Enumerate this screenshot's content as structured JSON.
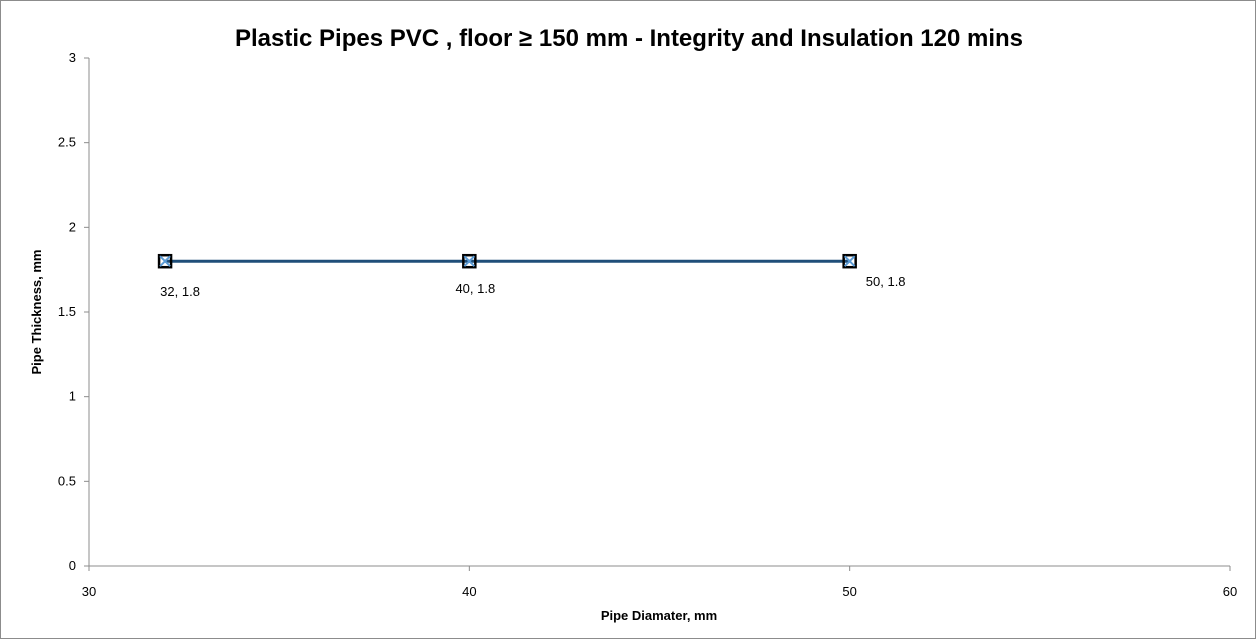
{
  "chart_data": {
    "type": "scatter",
    "title": "Plastic Pipes PVC , floor ≥ 150 mm -  Integrity and Insulation 120 mins",
    "xlabel": "Pipe Diamater, mm",
    "ylabel": "Pipe Thickness, mm",
    "xlim": [
      30,
      60
    ],
    "ylim": [
      0,
      3
    ],
    "x_ticks": [
      "30",
      "40",
      "50",
      "60"
    ],
    "y_ticks": [
      "0",
      "0.5",
      "1",
      "1.5",
      "2",
      "2.5",
      "3"
    ],
    "grid": false,
    "legend": "none",
    "series": [
      {
        "x": [
          32,
          40,
          50
        ],
        "y": [
          1.8,
          1.8,
          1.8
        ],
        "data_labels": [
          "32, 1.8",
          "40, 1.8",
          "50, 1.8"
        ],
        "line_color": "#1f4e79",
        "marker": "square-x",
        "marker_color": "#000000",
        "marker_cross_color": "#5b9bd5"
      }
    ]
  }
}
